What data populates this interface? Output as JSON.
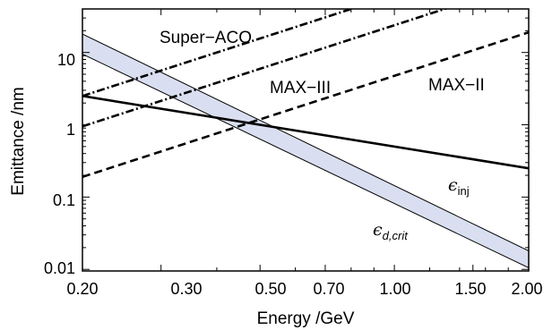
{
  "chart_data": {
    "type": "line",
    "xlabel": "Energy /GeV",
    "ylabel": "Emittance /nm",
    "xscale": "log",
    "yscale": "log",
    "xlim": [
      0.2,
      2.0
    ],
    "ylim": [
      0.0095,
      40
    ],
    "x_ticks": [
      0.2,
      0.3,
      0.5,
      0.7,
      1.0,
      1.5,
      2.0
    ],
    "x_tick_labels": [
      "0.20",
      "0.30",
      "0.50",
      "0.70",
      "1.00",
      "1.50",
      "2.00"
    ],
    "y_ticks": [
      0.01,
      0.1,
      1,
      10
    ],
    "y_tick_labels": [
      "0.01",
      "0.1",
      "1",
      "10"
    ],
    "grid": false,
    "band": {
      "label_symbol": "ϵ",
      "label_sub": "d,crit",
      "color": "#d9dff0",
      "upper": [
        [
          0.2,
          18
        ],
        [
          2.0,
          0.018
        ]
      ],
      "lower": [
        [
          0.2,
          9.5
        ],
        [
          2.0,
          0.0105
        ]
      ]
    },
    "series": [
      {
        "name": "Super−ACO",
        "style": "dashdot",
        "values": [
          [
            0.2,
            2.5
          ],
          [
            1.45,
            131
          ]
        ]
      },
      {
        "name": "MAX−III",
        "style": "dashdot",
        "values": [
          [
            0.2,
            0.95
          ],
          [
            1.6,
            61
          ]
        ]
      },
      {
        "name": "MAX−II",
        "style": "dashed",
        "values": [
          [
            0.2,
            0.19
          ],
          [
            2.0,
            19
          ]
        ]
      },
      {
        "label_symbol": "ϵ",
        "label_sub": "inj",
        "style": "solid",
        "values": [
          [
            0.2,
            2.5
          ],
          [
            2.0,
            0.25
          ]
        ]
      }
    ]
  }
}
